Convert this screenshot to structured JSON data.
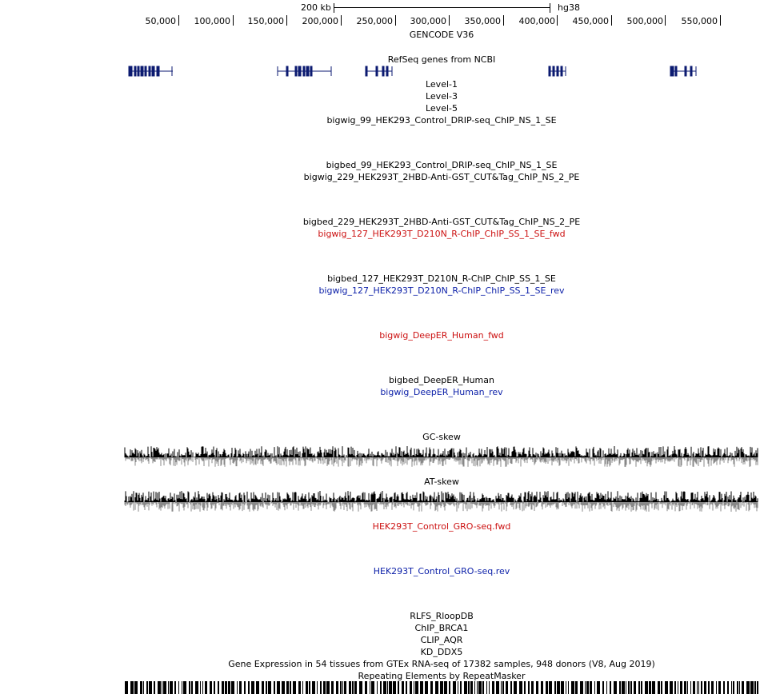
{
  "scale_bar": {
    "label": "200 kb",
    "assembly": "hg38"
  },
  "ruler": {
    "ticks": [
      "50,000",
      "100,000",
      "150,000",
      "200,000",
      "250,000",
      "300,000",
      "350,000",
      "400,000",
      "450,000",
      "500,000",
      "550,000"
    ]
  },
  "tracks": {
    "gencode": "GENCODE V36",
    "refseq": "RefSeq genes from NCBI",
    "level1": "Level-1",
    "level3": "Level-3",
    "level5": "Level-5",
    "t1": "bigwig_99_HEK293_Control_DRIP-seq_ChIP_NS_1_SE",
    "t2": "bigbed_99_HEK293_Control_DRIP-seq_ChIP_NS_1_SE",
    "t3": "bigwig_229_HEK293T_2HBD-Anti-GST_CUT&Tag_ChIP_NS_2_PE",
    "t4": "bigbed_229_HEK293T_2HBD-Anti-GST_CUT&Tag_ChIP_NS_2_PE",
    "t5": "bigwig_127_HEK293T_D210N_R-ChIP_ChIP_SS_1_SE_fwd",
    "t6": "bigbed_127_HEK293T_D210N_R-ChIP_ChIP_SS_1_SE",
    "t7": "bigwig_127_HEK293T_D210N_R-ChIP_ChIP_SS_1_SE_rev",
    "t8": "bigwig_DeepER_Human_fwd",
    "t9": "bigbed_DeepER_Human",
    "t10": "bigwig_DeepER_Human_rev",
    "gc": "GC-skew",
    "at": "AT-skew",
    "gro_fwd": "HEK293T_Control_GRO-seq.fwd",
    "gro_rev": "HEK293T_Control_GRO-seq.rev",
    "rlfs": "RLFS_RloopDB",
    "chip": "ChIP_BRCA1",
    "clip": "CLIP_AQR",
    "kd": "KD_DDX5",
    "gtex": "Gene Expression in 54 tissues from GTEx RNA-seq of 17382 samples, 948 donors (V8, Aug 2019)",
    "rmsk": "Repeating Elements by RepeatMasker"
  },
  "colors": {
    "gene": "#0b1a70",
    "red": "#cc1111",
    "blue": "#0b1fa8",
    "signal": "#000000",
    "signal_neg": "#888888"
  }
}
